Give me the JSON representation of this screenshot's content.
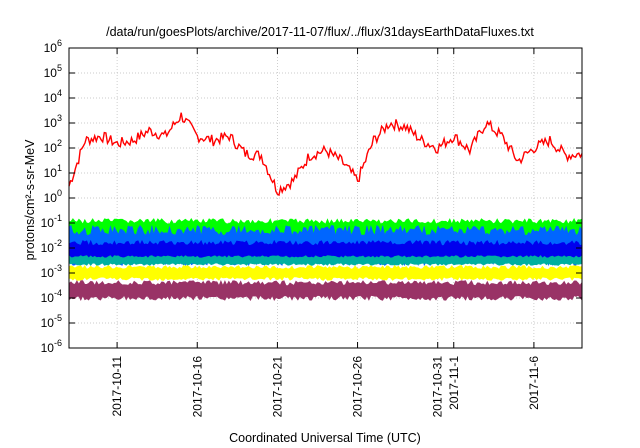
{
  "chart_data": {
    "type": "line",
    "title": "/data/run/goesPlots/archive/2017-11-07/flux/../flux/31daysEarthDataFluxes.txt",
    "xlabel": "Coordinated Universal Time (UTC)",
    "ylabel": "protons/cm²-s-sr-MeV",
    "y_scale": "log",
    "ylim": [
      1e-06,
      1000000.0
    ],
    "y_ticks": [
      {
        "value": 1e-06,
        "base": "10",
        "exp": "-6"
      },
      {
        "value": 1e-05,
        "base": "10",
        "exp": "-5"
      },
      {
        "value": 0.0001,
        "base": "10",
        "exp": "-4"
      },
      {
        "value": 0.001,
        "base": "10",
        "exp": "-3"
      },
      {
        "value": 0.01,
        "base": "10",
        "exp": "-2"
      },
      {
        "value": 0.1,
        "base": "10",
        "exp": "-1"
      },
      {
        "value": 1,
        "base": "10",
        "exp": "0"
      },
      {
        "value": 10,
        "base": "10",
        "exp": "1"
      },
      {
        "value": 100,
        "base": "10",
        "exp": "2"
      },
      {
        "value": 1000,
        "base": "10",
        "exp": "3"
      },
      {
        "value": 10000,
        "base": "10",
        "exp": "4"
      },
      {
        "value": 100000,
        "base": "10",
        "exp": "5"
      },
      {
        "value": 1000000,
        "base": "10",
        "exp": "6"
      }
    ],
    "xlim": [
      "2017-10-08",
      "2017-11-09"
    ],
    "x_ticks": [
      {
        "date": "2017-10-11",
        "label": "2017-10-11"
      },
      {
        "date": "2017-10-16",
        "label": "2017-10-16"
      },
      {
        "date": "2017-10-21",
        "label": "2017-10-21"
      },
      {
        "date": "2017-10-26",
        "label": "2017-10-26"
      },
      {
        "date": "2017-10-31",
        "label": "2017-10-31"
      },
      {
        "date": "2017-11-01",
        "label": "2017-11-1"
      },
      {
        "date": "2017-11-06",
        "label": "2017-11-6"
      }
    ],
    "grid": true,
    "legend": "none",
    "series": [
      {
        "color": "#ff0000",
        "x": [
          "2017-10-08",
          "2017-10-09",
          "2017-10-10",
          "2017-10-11",
          "2017-10-12",
          "2017-10-13",
          "2017-10-14",
          "2017-10-15",
          "2017-10-16",
          "2017-10-17",
          "2017-10-18",
          "2017-10-19",
          "2017-10-20",
          "2017-10-21",
          "2017-10-22",
          "2017-10-23",
          "2017-10-24",
          "2017-10-25",
          "2017-10-26",
          "2017-10-27",
          "2017-10-28",
          "2017-10-29",
          "2017-10-30",
          "2017-10-31",
          "2017-11-01",
          "2017-11-02",
          "2017-11-03",
          "2017-11-04",
          "2017-11-05",
          "2017-11-06",
          "2017-11-07",
          "2017-11-08",
          "2017-11-09"
        ],
        "values": [
          3,
          200,
          300,
          150,
          200,
          500,
          300,
          2000,
          300,
          200,
          300,
          60,
          50,
          2,
          5,
          50,
          80,
          30,
          5,
          200,
          1000,
          700,
          200,
          100,
          300,
          80,
          1000,
          300,
          30,
          100,
          200,
          50,
          60
        ]
      },
      {
        "color": "#00ff00",
        "band": [
          0.02,
          0.15
        ]
      },
      {
        "color": "#0066ff",
        "band": [
          0.002,
          0.08
        ]
      },
      {
        "color": "#0000ee",
        "band": [
          0.003,
          0.02
        ]
      },
      {
        "color": "#00b0a0",
        "band": [
          0.002,
          0.005
        ]
      },
      {
        "color": "#ffff00",
        "band": [
          0.0005,
          0.002
        ]
      },
      {
        "color": "#993366",
        "band": [
          8e-05,
          0.0005
        ]
      }
    ]
  }
}
